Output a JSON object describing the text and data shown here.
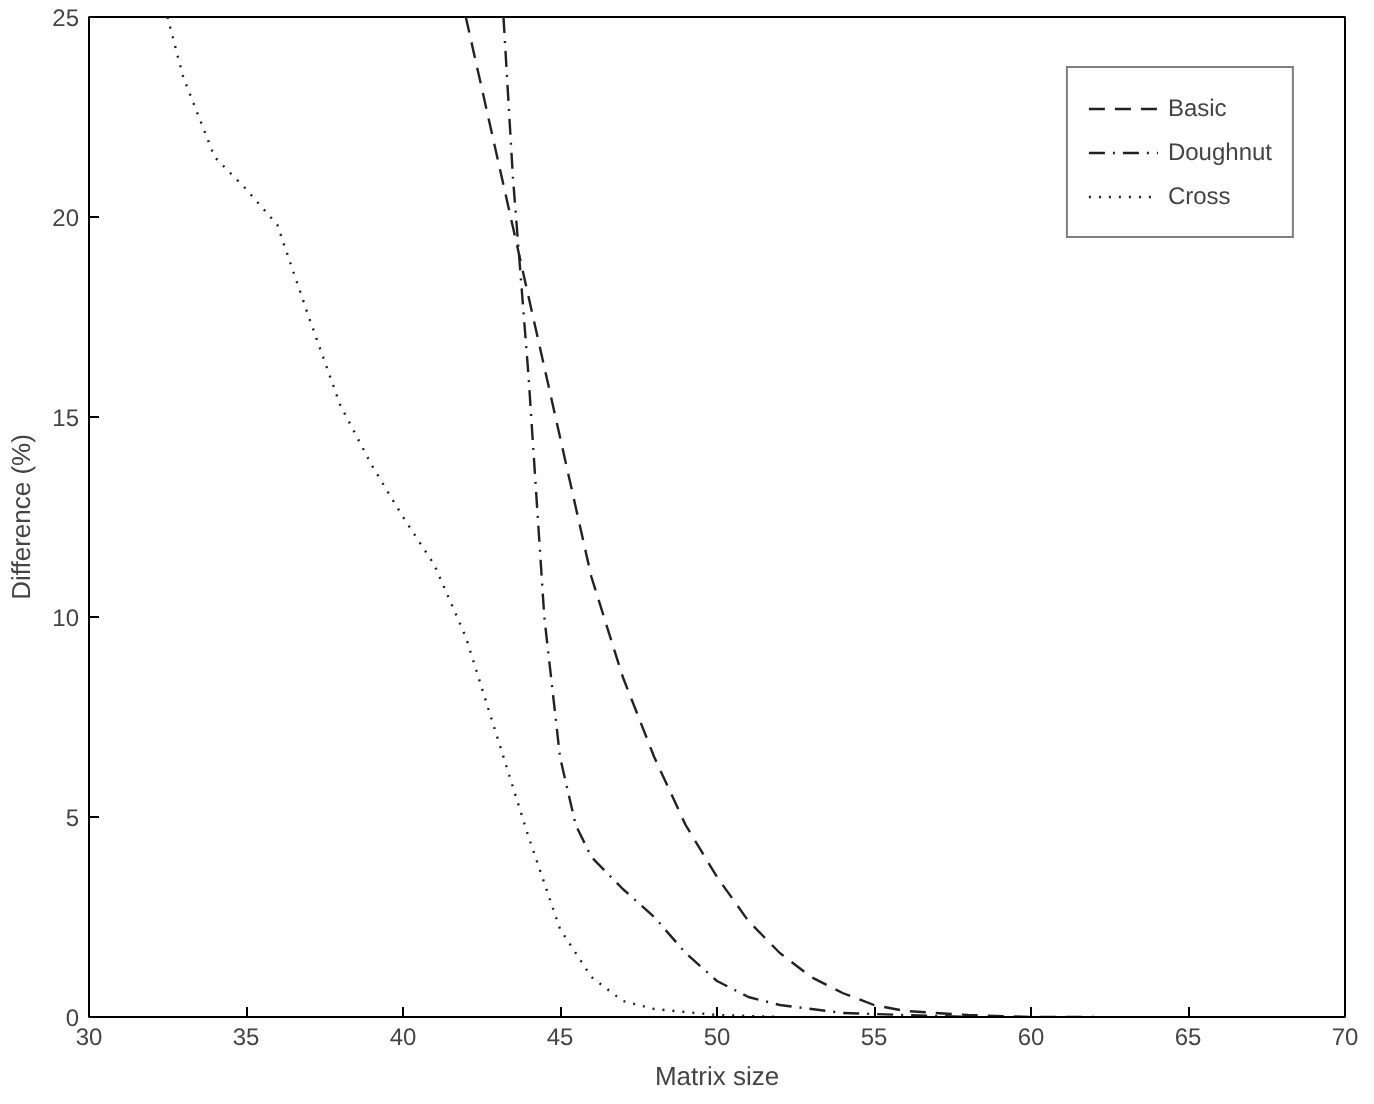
{
  "chart_data": {
    "type": "line",
    "xlabel": "Matrix size",
    "ylabel": "Difference (%)",
    "xlim": [
      30,
      70
    ],
    "ylim": [
      0,
      25
    ],
    "xticks": [
      30,
      35,
      40,
      45,
      50,
      55,
      60,
      65,
      70
    ],
    "yticks": [
      0,
      5,
      10,
      15,
      20,
      25
    ],
    "grid": false,
    "legend": "top right",
    "marker": "none",
    "series": [
      {
        "name": "Basic",
        "color": "#222222",
        "line_style": "dashed",
        "x": [
          42,
          43,
          44,
          45,
          46,
          47,
          48,
          49,
          50,
          51,
          52,
          53,
          54,
          55,
          56,
          58,
          60,
          62
        ],
        "values": [
          25,
          21.5,
          18,
          14.5,
          11,
          8.5,
          6.5,
          4.8,
          3.5,
          2.4,
          1.6,
          1,
          0.6,
          0.3,
          0.15,
          0.05,
          0,
          0
        ]
      },
      {
        "name": "Doughnut",
        "color": "#222222",
        "line_style": "dashdot",
        "x": [
          43.2,
          43.5,
          44,
          44.5,
          45,
          45.5,
          46,
          47,
          48,
          49,
          50,
          51,
          52,
          54,
          56,
          58
        ],
        "values": [
          25,
          21,
          16,
          10,
          6.5,
          4.8,
          4,
          3.2,
          2.5,
          1.6,
          0.9,
          0.5,
          0.3,
          0.1,
          0.05,
          0
        ]
      },
      {
        "name": "Cross",
        "color": "#222222",
        "line_style": "dotted",
        "x": [
          32.5,
          33,
          34,
          35,
          36,
          37,
          38,
          39,
          40,
          41,
          42,
          43,
          44,
          45,
          46,
          47,
          48,
          50,
          52
        ],
        "values": [
          25,
          23.5,
          21.5,
          20.7,
          19.8,
          17.5,
          15.3,
          13.8,
          12.5,
          11.3,
          9.5,
          7,
          4.5,
          2.2,
          1,
          0.4,
          0.2,
          0.05,
          0
        ]
      }
    ]
  }
}
